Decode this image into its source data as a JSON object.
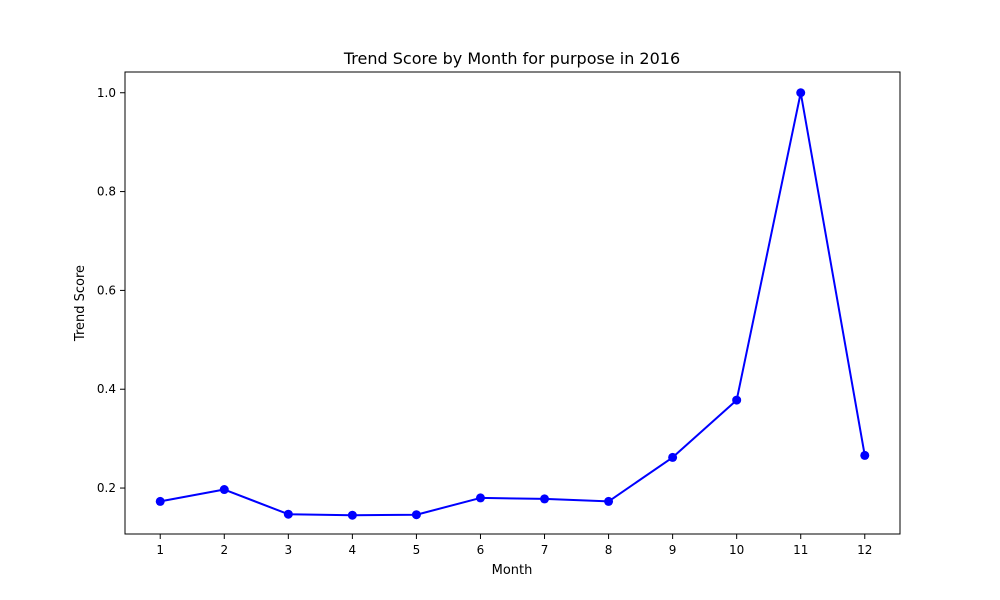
{
  "chart_data": {
    "type": "line",
    "title": "Trend Score by Month for purpose in 2016",
    "xlabel": "Month",
    "ylabel": "Trend Score",
    "x": [
      1,
      2,
      3,
      4,
      5,
      6,
      7,
      8,
      9,
      10,
      11,
      12
    ],
    "x_tick_labels": [
      "1",
      "2",
      "3",
      "4",
      "5",
      "6",
      "7",
      "8",
      "9",
      "10",
      "11",
      "12"
    ],
    "y_ticks": [
      0.2,
      0.4,
      0.6,
      0.8,
      1.0
    ],
    "y_tick_labels": [
      "0.2",
      "0.4",
      "0.6",
      "0.8",
      "1.0"
    ],
    "xlim": [
      0.45,
      12.55
    ],
    "ylim": [
      0.107,
      1.042
    ],
    "grid": false,
    "series": [
      {
        "values": [
          0.173,
          0.197,
          0.147,
          0.145,
          0.146,
          0.18,
          0.178,
          0.173,
          0.262,
          0.378,
          1.0,
          0.266
        ],
        "color": "#0000ff",
        "marker": "circle"
      }
    ]
  }
}
